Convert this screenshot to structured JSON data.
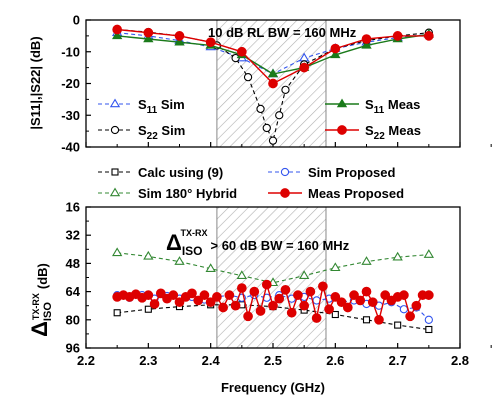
{
  "chart_data": [
    {
      "type": "line",
      "ylabel": "|S11|,|S22| (dB)",
      "xlim": [
        2.2,
        2.8
      ],
      "ylim": [
        -40,
        0
      ],
      "yticks": [
        "0",
        "-10",
        "-20",
        "-30",
        "-40"
      ],
      "annotation": "10 dB RL BW = 160 MHz",
      "shaded_band": [
        2.41,
        2.585
      ],
      "legend": {
        "left": [
          "S11 Sim",
          "S22 Sim"
        ],
        "right": [
          "S11 Meas",
          "S22 Meas"
        ]
      },
      "series": [
        {
          "name": "S11 Sim",
          "color": "#3355ee",
          "marker": "triangle-open",
          "dash": "4,3",
          "x": [
            2.25,
            2.3,
            2.35,
            2.4,
            2.45,
            2.5,
            2.55,
            2.6,
            2.65,
            2.7,
            2.75
          ],
          "y": [
            -4,
            -5,
            -6.5,
            -8.5,
            -12,
            -17,
            -12,
            -9,
            -7,
            -5.5,
            -4.5
          ]
        },
        {
          "name": "S22 Sim",
          "color": "#000000",
          "marker": "circle-open",
          "dash": "4,3",
          "x": [
            2.25,
            2.3,
            2.35,
            2.4,
            2.41,
            2.44,
            2.46,
            2.48,
            2.49,
            2.5,
            2.51,
            2.52,
            2.55,
            2.6,
            2.65,
            2.7,
            2.75
          ],
          "y": [
            -3,
            -3.8,
            -5,
            -7,
            -8,
            -12,
            -18,
            -28,
            -34,
            -38,
            -30,
            -22,
            -14,
            -9,
            -6.5,
            -5,
            -4
          ]
        },
        {
          "name": "S11 Meas",
          "color": "#1a7a1a",
          "marker": "triangle-filled",
          "dash": "",
          "x": [
            2.25,
            2.3,
            2.35,
            2.4,
            2.45,
            2.5,
            2.55,
            2.6,
            2.65,
            2.7,
            2.75
          ],
          "y": [
            -5,
            -6,
            -7,
            -8,
            -11,
            -17,
            -15,
            -11,
            -8,
            -6,
            -4.5
          ]
        },
        {
          "name": "S22 Meas",
          "color": "#dd0000",
          "marker": "circle-filled",
          "dash": "",
          "x": [
            2.25,
            2.3,
            2.35,
            2.4,
            2.45,
            2.5,
            2.55,
            2.6,
            2.65,
            2.7,
            2.75
          ],
          "y": [
            -3,
            -4,
            -5,
            -7,
            -10,
            -20,
            -15,
            -9,
            -6,
            -5,
            -5
          ]
        }
      ]
    },
    {
      "type": "line",
      "xlabel": "Frequency (GHz)",
      "ylabel": "ΔISO TX-RX (dB)",
      "xlim": [
        2.2,
        2.8
      ],
      "xticks": [
        "2.2",
        "2.3",
        "2.4",
        "2.5",
        "2.6",
        "2.7",
        "2.8"
      ],
      "ylim": [
        16,
        96
      ],
      "y_inverted": true,
      "yticks": [
        "16",
        "32",
        "48",
        "64",
        "80",
        "96"
      ],
      "annotation": "ΔISO TX-RX > 60 dB BW = 160 MHz",
      "shaded_band": [
        2.41,
        2.585
      ],
      "legend": [
        "Calc using (9)",
        "Sim Proposed",
        "Sim 180° Hybrid",
        "Meas Proposed"
      ],
      "series": [
        {
          "name": "Calc using (9)",
          "color": "#000000",
          "marker": "square-open",
          "dash": "4,3",
          "x": [
            2.25,
            2.3,
            2.35,
            2.4,
            2.45,
            2.5,
            2.55,
            2.6,
            2.65,
            2.7,
            2.75
          ],
          "y": [
            76,
            74,
            72.5,
            71.5,
            71.5,
            72.5,
            74.5,
            77,
            80,
            83,
            85.5
          ]
        },
        {
          "name": "Sim Proposed",
          "color": "#3355ee",
          "marker": "circle-open",
          "dash": "4,3",
          "x": [
            2.25,
            2.27,
            2.29,
            2.31,
            2.33,
            2.35,
            2.37,
            2.39,
            2.41,
            2.43,
            2.45,
            2.47,
            2.49,
            2.51,
            2.53,
            2.55,
            2.57,
            2.59,
            2.61,
            2.63,
            2.65,
            2.67,
            2.69,
            2.71,
            2.73,
            2.75
          ],
          "y": [
            66,
            67.5,
            66,
            68,
            66.5,
            68,
            67,
            68.5,
            67,
            66,
            67.5,
            66,
            67.5,
            66,
            68,
            67,
            69,
            68,
            70,
            69,
            71,
            72,
            70,
            74,
            73,
            80
          ]
        },
        {
          "name": "Sim 180° Hybrid",
          "color": "#338833",
          "marker": "triangle-open",
          "dash": "4,3",
          "x": [
            2.25,
            2.3,
            2.35,
            2.4,
            2.45,
            2.5,
            2.55,
            2.6,
            2.65,
            2.7,
            2.75
          ],
          "y": [
            42,
            44,
            47,
            51,
            55,
            59,
            55,
            50.5,
            47,
            44.5,
            43
          ]
        },
        {
          "name": "Meas Proposed",
          "color": "#dd0000",
          "marker": "circle-filled",
          "dash": "",
          "x": [
            2.25,
            2.26,
            2.27,
            2.28,
            2.29,
            2.3,
            2.31,
            2.32,
            2.33,
            2.34,
            2.35,
            2.36,
            2.37,
            2.38,
            2.39,
            2.4,
            2.41,
            2.42,
            2.43,
            2.44,
            2.45,
            2.46,
            2.47,
            2.48,
            2.49,
            2.5,
            2.51,
            2.52,
            2.53,
            2.54,
            2.55,
            2.56,
            2.57,
            2.58,
            2.59,
            2.6,
            2.61,
            2.62,
            2.63,
            2.64,
            2.65,
            2.66,
            2.67,
            2.68,
            2.69,
            2.7,
            2.71,
            2.72,
            2.73,
            2.74,
            2.75
          ],
          "y": [
            67,
            66,
            67,
            65.5,
            67.5,
            66,
            71,
            65,
            68,
            66,
            70,
            67,
            65,
            69,
            66,
            70,
            67,
            73,
            66,
            72,
            62,
            78,
            64,
            75,
            60,
            72,
            68,
            63,
            76,
            66,
            72,
            64,
            79,
            61,
            74,
            67,
            70,
            73,
            66,
            69,
            64,
            70,
            80,
            66,
            69,
            67,
            66,
            78,
            72,
            66,
            66
          ]
        }
      ]
    }
  ]
}
